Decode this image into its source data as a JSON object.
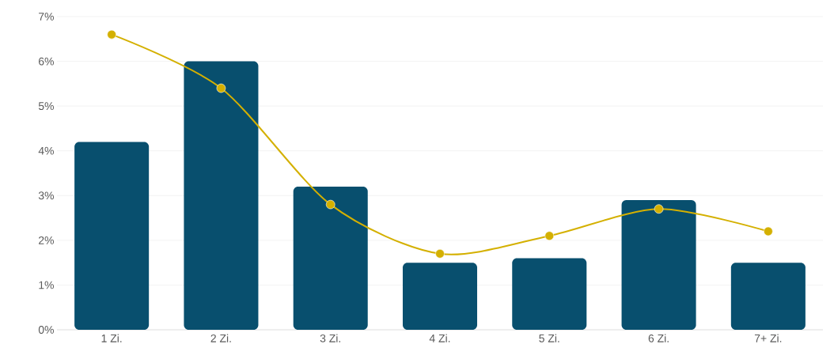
{
  "chart_data": {
    "type": "bar",
    "categories": [
      "1 Zi.",
      "2 Zi.",
      "3 Zi.",
      "4 Zi.",
      "5 Zi.",
      "6 Zi.",
      "7+ Zi."
    ],
    "series": [
      {
        "color": "#084f6e",
        "values": [
          4.2,
          6.0,
          3.2,
          1.5,
          1.6,
          2.9,
          1.5
        ]
      },
      {
        "type": "line",
        "color": "#d4b000",
        "marker": "circle",
        "values": [
          6.6,
          5.4,
          2.8,
          1.7,
          2.1,
          2.7,
          2.2
        ]
      }
    ],
    "ylim": [
      0,
      7
    ],
    "yticks": [
      {
        "value": 0,
        "label": "0%"
      },
      {
        "value": 1,
        "label": "1%"
      },
      {
        "value": 2,
        "label": "2%"
      },
      {
        "value": 3,
        "label": "3%"
      },
      {
        "value": 4,
        "label": "4%"
      },
      {
        "value": 5,
        "label": "5%"
      },
      {
        "value": 6,
        "label": "6%"
      },
      {
        "value": 7,
        "label": "7%"
      }
    ],
    "grid": "y"
  }
}
